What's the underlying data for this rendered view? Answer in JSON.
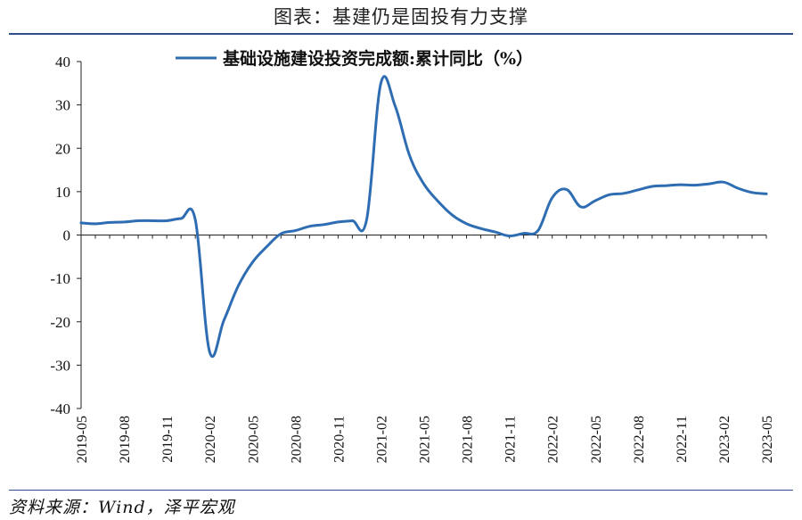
{
  "header": {
    "title": "图表：基建仍是固投有力支撑"
  },
  "footer": {
    "source": "资料来源：Wind，泽平宏观"
  },
  "chart_data": {
    "type": "line",
    "title": "",
    "xlabel": "",
    "ylabel": "",
    "ylim": [
      -40,
      40
    ],
    "yticks": [
      40,
      30,
      20,
      10,
      0,
      -10,
      -20,
      -30,
      -40
    ],
    "x_tick_labels": [
      "2019-05",
      "2019-08",
      "2019-11",
      "2020-02",
      "2020-05",
      "2020-08",
      "2020-11",
      "2021-02",
      "2021-05",
      "2021-08",
      "2021-11",
      "2022-02",
      "2022-05",
      "2022-08",
      "2022-11",
      "2023-02",
      "2023-05"
    ],
    "legend_position": "top-center",
    "grid": false,
    "line_color": "#2f6db3",
    "x": [
      "2019-05",
      "2019-06",
      "2019-07",
      "2019-08",
      "2019-09",
      "2019-10",
      "2019-11",
      "2019-12",
      "2020-01",
      "2020-02",
      "2020-03",
      "2020-04",
      "2020-05",
      "2020-06",
      "2020-07",
      "2020-08",
      "2020-09",
      "2020-10",
      "2020-11",
      "2020-12",
      "2021-01",
      "2021-02",
      "2021-03",
      "2021-04",
      "2021-05",
      "2021-06",
      "2021-07",
      "2021-08",
      "2021-09",
      "2021-10",
      "2021-11",
      "2021-12",
      "2022-01",
      "2022-02",
      "2022-03",
      "2022-04",
      "2022-05",
      "2022-06",
      "2022-07",
      "2022-08",
      "2022-09",
      "2022-10",
      "2022-11",
      "2022-12",
      "2023-01",
      "2023-02",
      "2023-03",
      "2023-04",
      "2023-05"
    ],
    "series": [
      {
        "name": "基础设施建设投资完成额:累计同比（%）",
        "values": [
          2.8,
          2.6,
          2.9,
          3.0,
          3.3,
          3.3,
          3.3,
          3.8,
          3.5,
          -26.9,
          -19.7,
          -11.8,
          -6.3,
          -2.7,
          0.3,
          1.0,
          2.0,
          2.4,
          3.0,
          3.3,
          3.5,
          35.0,
          29.7,
          18.4,
          11.8,
          7.8,
          4.6,
          2.6,
          1.5,
          0.7,
          -0.2,
          0.4,
          1.0,
          8.6,
          10.5,
          6.5,
          7.9,
          9.3,
          9.6,
          10.4,
          11.2,
          11.4,
          11.6,
          11.5,
          11.8,
          12.2,
          10.8,
          9.8,
          9.5
        ]
      }
    ]
  }
}
